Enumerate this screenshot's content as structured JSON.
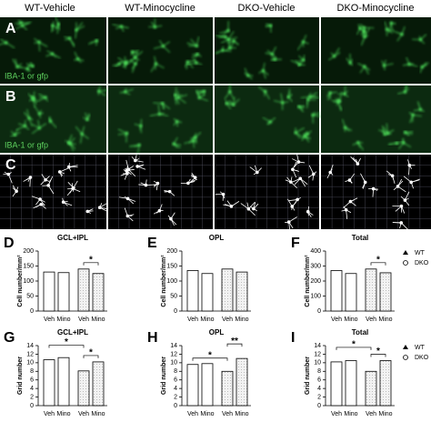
{
  "columns": [
    "WT-Vehicle",
    "WT-Minocycline",
    "DKO-Vehicle",
    "DKO-Minocycline"
  ],
  "image_panels": [
    {
      "label": "A",
      "stain": "IBA-1 or gfp"
    },
    {
      "label": "B",
      "stain": "IBA-1 or gfp"
    },
    {
      "label": "C"
    }
  ],
  "chart_data": [
    {
      "type": "bar",
      "panel": "D",
      "title": "GCL+IPL",
      "y_label": "Cell number/mm²",
      "categories": [
        "Veh",
        "Mino"
      ],
      "series": [
        {
          "color": "#ffffff",
          "values": [
            130,
            128
          ]
        },
        {
          "color": "#e8e8e8",
          "values": [
            140,
            125
          ]
        }
      ],
      "ylim": [
        0,
        200
      ],
      "yticks": [
        0,
        50,
        100,
        150,
        200
      ],
      "annotations": [
        {
          "text": "*",
          "from": 2,
          "to": 3
        }
      ]
    },
    {
      "type": "bar",
      "panel": "E",
      "title": "OPL",
      "y_label": "Cell number/mm²",
      "categories": [
        "Veh",
        "Mino"
      ],
      "series": [
        {
          "color": "#ffffff",
          "values": [
            135,
            125
          ]
        },
        {
          "color": "#e8e8e8",
          "values": [
            140,
            130
          ]
        }
      ],
      "ylim": [
        0,
        200
      ],
      "yticks": [
        0,
        50,
        100,
        150,
        200
      ],
      "annotations": []
    },
    {
      "type": "bar",
      "panel": "F",
      "title": "Total",
      "y_label": "Cell number/mm²",
      "categories": [
        "Veh",
        "Mino"
      ],
      "series": [
        {
          "name": "WT",
          "marker": "triangle",
          "color": "#ffffff",
          "values": [
            270,
            250
          ]
        },
        {
          "name": "DKO",
          "marker": "circle",
          "color": "#e8e8e8",
          "values": [
            280,
            255
          ]
        }
      ],
      "ylim": [
        0,
        400
      ],
      "yticks": [
        0,
        100,
        200,
        300,
        400
      ],
      "annotations": [
        {
          "text": "*",
          "from": 2,
          "to": 3
        }
      ]
    },
    {
      "type": "bar",
      "panel": "G",
      "title": "GCL+IPL",
      "y_label": "Grid number",
      "categories": [
        "Veh",
        "Mino"
      ],
      "series": [
        {
          "color": "#ffffff",
          "values": [
            10.7,
            11.2
          ]
        },
        {
          "color": "#e8e8e8",
          "values": [
            8.1,
            10.2
          ]
        }
      ],
      "ylim": [
        0,
        14
      ],
      "yticks": [
        0,
        2,
        4,
        6,
        8,
        10,
        12,
        14
      ],
      "annotations": [
        {
          "text": "*",
          "from": 2,
          "to": 3
        },
        {
          "text": "*",
          "from": 0,
          "to": 2
        }
      ]
    },
    {
      "type": "bar",
      "panel": "H",
      "title": "OPL",
      "y_label": "Grid number",
      "categories": [
        "Veh",
        "Mino"
      ],
      "series": [
        {
          "color": "#ffffff",
          "values": [
            9.6,
            9.8
          ]
        },
        {
          "color": "#e8e8e8",
          "values": [
            8.0,
            11.0
          ]
        }
      ],
      "ylim": [
        0,
        14
      ],
      "yticks": [
        0,
        2,
        4,
        6,
        8,
        10,
        12,
        14
      ],
      "annotations": [
        {
          "text": "*",
          "from": 0,
          "to": 2
        },
        {
          "text": "**",
          "from": 2,
          "to": 3
        }
      ]
    },
    {
      "type": "bar",
      "panel": "I",
      "title": "Total",
      "y_label": "Grid number",
      "categories": [
        "Veh",
        "Mino"
      ],
      "series": [
        {
          "name": "WT",
          "marker": "triangle",
          "color": "#ffffff",
          "values": [
            10.2,
            10.5
          ]
        },
        {
          "name": "DKO",
          "marker": "circle",
          "color": "#e8e8e8",
          "values": [
            8.0,
            10.5
          ]
        }
      ],
      "ylim": [
        0,
        14
      ],
      "yticks": [
        0,
        2,
        4,
        6,
        8,
        10,
        12,
        14
      ],
      "annotations": [
        {
          "text": "*",
          "from": 2,
          "to": 3
        },
        {
          "text": "*",
          "from": 0,
          "to": 2
        }
      ]
    }
  ]
}
